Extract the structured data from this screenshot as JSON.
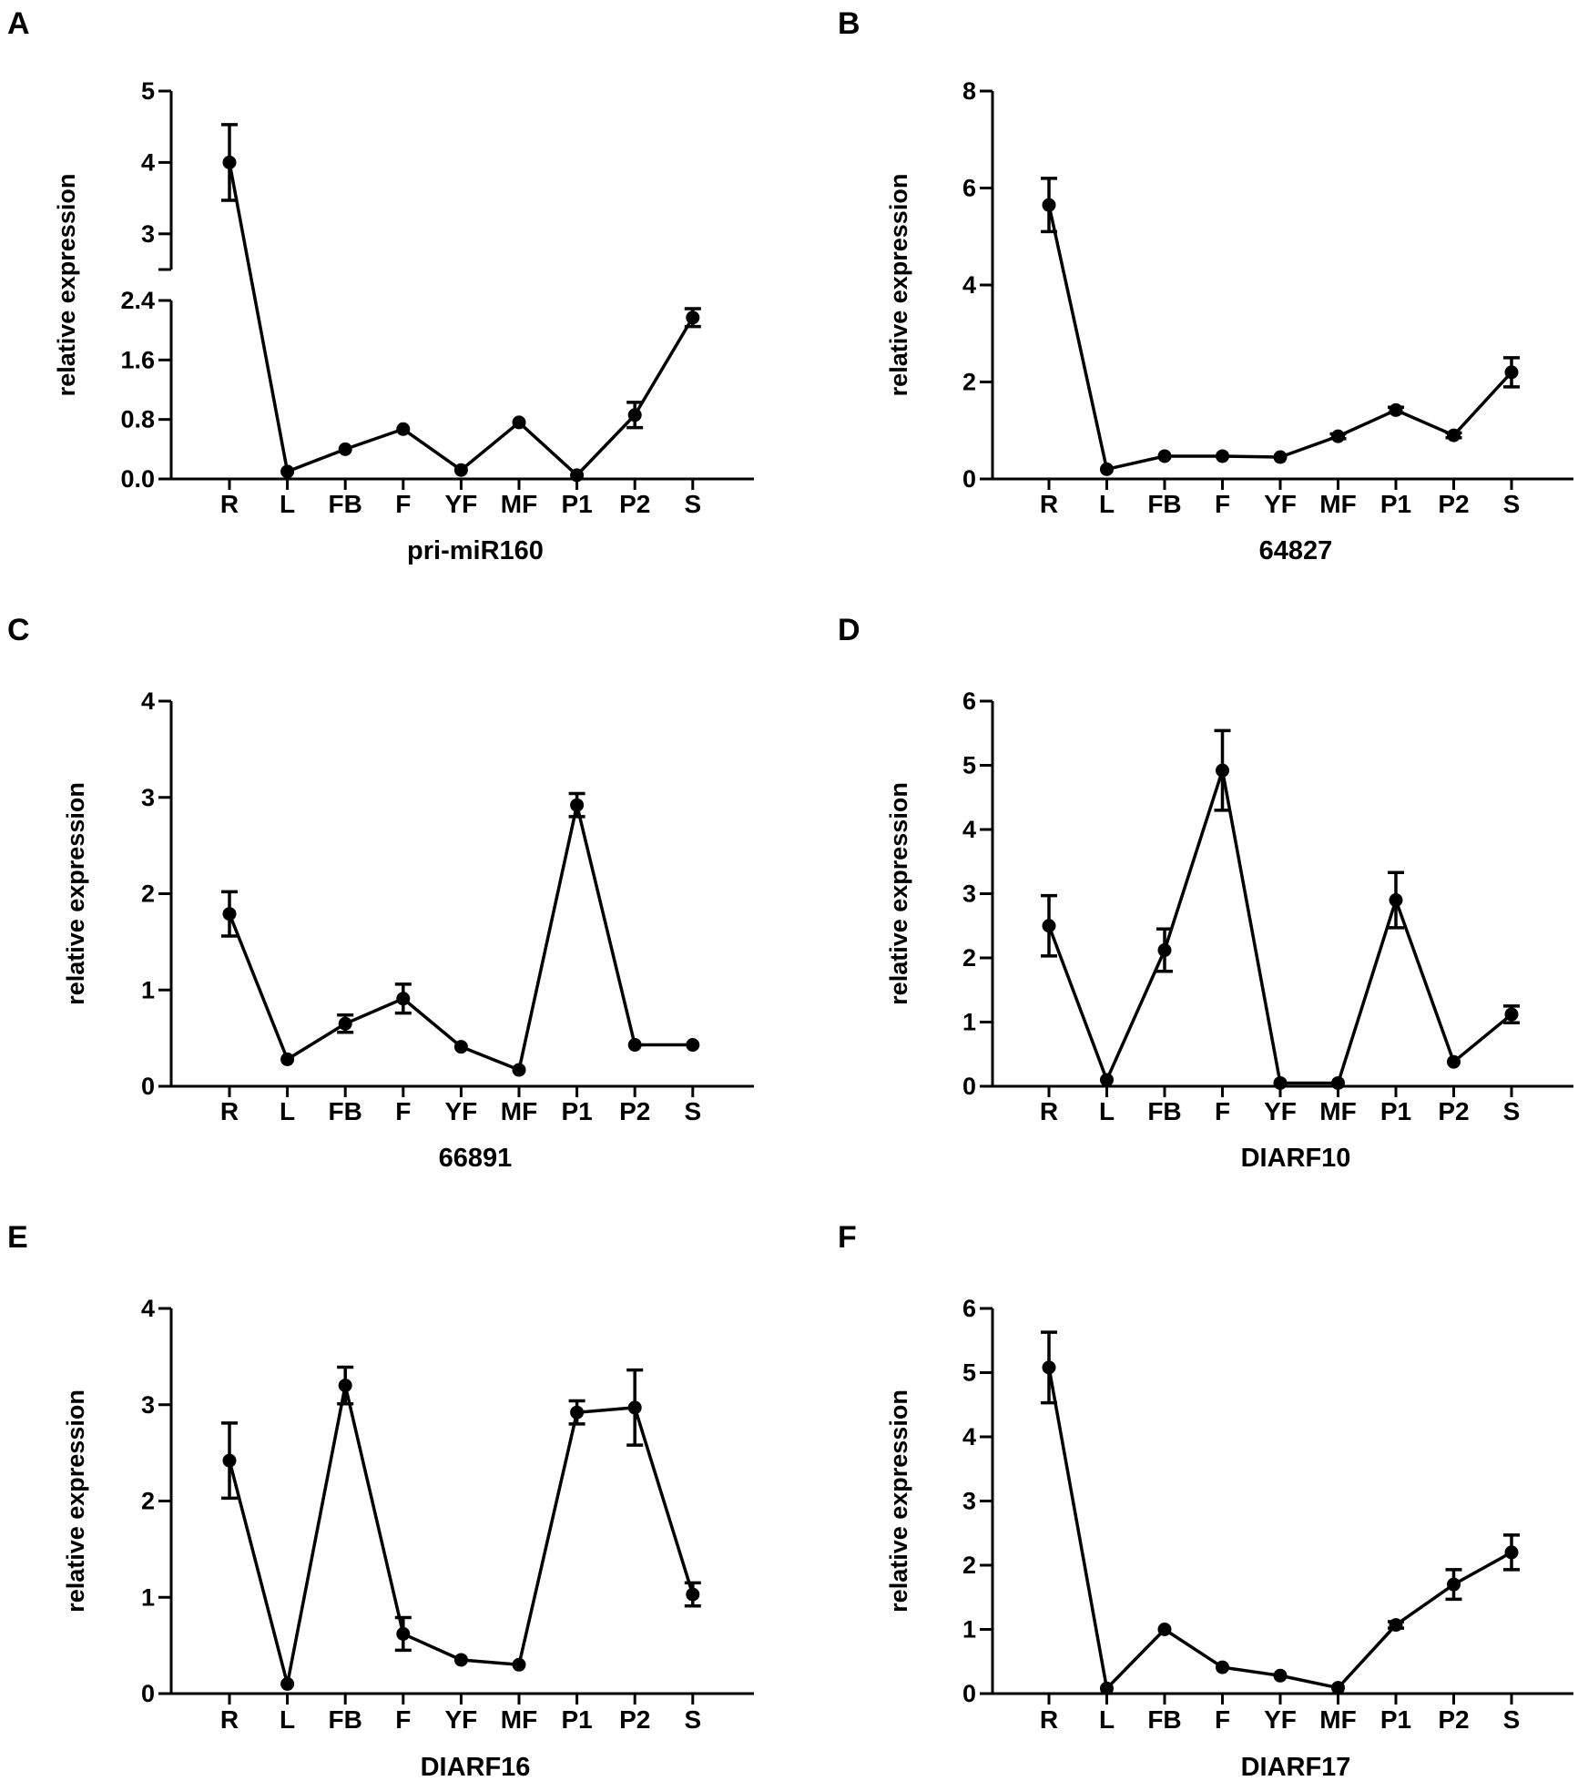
{
  "chart_data": [
    {
      "type": "line",
      "panel": "A",
      "xlabel": "pri-miR160",
      "ylabel": "relative expression",
      "categories": [
        "R",
        "L",
        "FB",
        "F",
        "YF",
        "MF",
        "P1",
        "P2",
        "S"
      ],
      "values": [
        4.0,
        0.1,
        0.4,
        0.67,
        0.12,
        0.76,
        0.05,
        0.86,
        2.17
      ],
      "errors": [
        0.53,
        0.03,
        0.04,
        0.04,
        0.03,
        0.04,
        0.02,
        0.17,
        0.12
      ],
      "ylim": [
        0,
        5
      ],
      "broken_axis": {
        "lower": [
          0,
          2.4
        ],
        "upper": [
          2.5,
          5
        ]
      },
      "yticks": [
        {
          "value": 0.0,
          "label": "0.0"
        },
        {
          "value": 0.8,
          "label": "0.8"
        },
        {
          "value": 1.6,
          "label": "1.6"
        },
        {
          "value": 2.4,
          "label": "2.4"
        },
        {
          "value": 3,
          "label": "3"
        },
        {
          "value": 4,
          "label": "4"
        },
        {
          "value": 5,
          "label": "5"
        }
      ]
    },
    {
      "type": "line",
      "panel": "B",
      "xlabel": "64827",
      "ylabel": "relative expression",
      "categories": [
        "R",
        "L",
        "FB",
        "F",
        "YF",
        "MF",
        "P1",
        "P2",
        "S"
      ],
      "values": [
        5.65,
        0.2,
        0.47,
        0.47,
        0.45,
        0.88,
        1.42,
        0.9,
        2.2
      ],
      "errors": [
        0.55,
        0.03,
        0.03,
        0.03,
        0.03,
        0.05,
        0.06,
        0.05,
        0.3
      ],
      "ylim": [
        0,
        8
      ],
      "yticks": [
        {
          "value": 0,
          "label": "0"
        },
        {
          "value": 2,
          "label": "2"
        },
        {
          "value": 4,
          "label": "4"
        },
        {
          "value": 6,
          "label": "6"
        },
        {
          "value": 8,
          "label": "8"
        }
      ]
    },
    {
      "type": "line",
      "panel": "C",
      "xlabel": "66891",
      "ylabel": "relative expression",
      "categories": [
        "R",
        "L",
        "FB",
        "F",
        "YF",
        "MF",
        "P1",
        "P2",
        "S"
      ],
      "values": [
        1.79,
        0.28,
        0.65,
        0.91,
        0.41,
        0.17,
        2.92,
        0.43,
        0.43
      ],
      "errors": [
        0.23,
        0.02,
        0.09,
        0.15,
        0.02,
        0.02,
        0.12,
        0.02,
        0.02
      ],
      "ylim": [
        0,
        4
      ],
      "yticks": [
        {
          "value": 0,
          "label": "0"
        },
        {
          "value": 1,
          "label": "1"
        },
        {
          "value": 2,
          "label": "2"
        },
        {
          "value": 3,
          "label": "3"
        },
        {
          "value": 4,
          "label": "4"
        }
      ]
    },
    {
      "type": "line",
      "panel": "D",
      "xlabel": "DIARF10",
      "ylabel": "relative expression",
      "categories": [
        "R",
        "L",
        "FB",
        "F",
        "YF",
        "MF",
        "P1",
        "P2",
        "S"
      ],
      "values": [
        2.5,
        0.1,
        2.12,
        4.92,
        0.05,
        0.05,
        2.9,
        0.38,
        1.12
      ],
      "errors": [
        0.47,
        0.03,
        0.33,
        0.62,
        0.02,
        0.02,
        0.43,
        0.02,
        0.13
      ],
      "ylim": [
        0,
        6
      ],
      "yticks": [
        {
          "value": 0,
          "label": "0"
        },
        {
          "value": 1,
          "label": "1"
        },
        {
          "value": 2,
          "label": "2"
        },
        {
          "value": 3,
          "label": "3"
        },
        {
          "value": 4,
          "label": "4"
        },
        {
          "value": 5,
          "label": "5"
        },
        {
          "value": 6,
          "label": "6"
        }
      ]
    },
    {
      "type": "line",
      "panel": "E",
      "xlabel": "DIARF16",
      "ylabel": "relative expression",
      "categories": [
        "R",
        "L",
        "FB",
        "F",
        "YF",
        "MF",
        "P1",
        "P2",
        "S"
      ],
      "values": [
        2.42,
        0.1,
        3.2,
        0.62,
        0.35,
        0.3,
        2.92,
        2.97,
        1.03
      ],
      "errors": [
        0.39,
        0.02,
        0.19,
        0.17,
        0.02,
        0.02,
        0.12,
        0.39,
        0.12
      ],
      "ylim": [
        0,
        4
      ],
      "yticks": [
        {
          "value": 0,
          "label": "0"
        },
        {
          "value": 1,
          "label": "1"
        },
        {
          "value": 2,
          "label": "2"
        },
        {
          "value": 3,
          "label": "3"
        },
        {
          "value": 4,
          "label": "4"
        }
      ]
    },
    {
      "type": "line",
      "panel": "F",
      "xlabel": "DIARF17",
      "ylabel": "relative expression",
      "categories": [
        "R",
        "L",
        "FB",
        "F",
        "YF",
        "MF",
        "P1",
        "P2",
        "S"
      ],
      "values": [
        5.08,
        0.08,
        1.0,
        0.41,
        0.28,
        0.09,
        1.07,
        1.7,
        2.2
      ],
      "errors": [
        0.55,
        0.02,
        0.03,
        0.03,
        0.03,
        0.02,
        0.05,
        0.23,
        0.27
      ],
      "ylim": [
        0,
        6
      ],
      "yticks": [
        {
          "value": 0,
          "label": "0"
        },
        {
          "value": 1,
          "label": "1"
        },
        {
          "value": 2,
          "label": "2"
        },
        {
          "value": 3,
          "label": "3"
        },
        {
          "value": 4,
          "label": "4"
        },
        {
          "value": 5,
          "label": "5"
        },
        {
          "value": 6,
          "label": "6"
        }
      ]
    }
  ]
}
